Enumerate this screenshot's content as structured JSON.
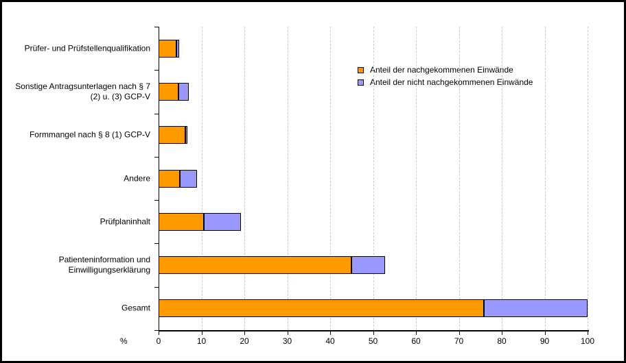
{
  "axis": {
    "xlabel": "%",
    "xticks": [
      0,
      10,
      20,
      30,
      40,
      50,
      60,
      70,
      80,
      90,
      100
    ]
  },
  "legend": {
    "entries": [
      {
        "label": "Anteil der nachgekommenen Einwände",
        "color": "#FF9900",
        "icon": "orange-swatch-icon"
      },
      {
        "label": "Anteil der nicht nachgekommenen Einwände",
        "color": "#9999FF",
        "icon": "blue-swatch-icon"
      }
    ]
  },
  "chart_data": {
    "type": "bar",
    "orientation": "horizontal",
    "stacked": true,
    "title": "",
    "xlabel": "%",
    "ylabel": "",
    "xlim": [
      0,
      100
    ],
    "grid": "vertical-dashed",
    "legend_position": "upper-right-inside",
    "categories": [
      "Prüfer- und Prüfstellenqualifikation",
      "Sonstige Antragsunterlagen nach § 7 (2) u. (3) GCP-V",
      "Formmangel nach § 8 (1) GCP-V",
      "Andere",
      "Prüfplaninhalt",
      "Patienteninformation und Einwilligungserklärung",
      "Gesamt"
    ],
    "series": [
      {
        "name": "Anteil der nachgekommenen Einwände",
        "color": "#FF9900",
        "values": [
          4.2,
          4.6,
          6.3,
          4.9,
          10.6,
          45.0,
          75.8
        ]
      },
      {
        "name": "Anteil der nicht nachgekommenen Einwände",
        "color": "#9999FF",
        "values": [
          0.6,
          2.4,
          0.4,
          4.0,
          8.6,
          7.8,
          24.2
        ]
      }
    ]
  }
}
